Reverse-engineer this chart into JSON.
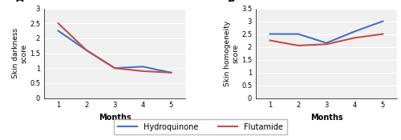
{
  "months": [
    1,
    2,
    3,
    4,
    5
  ],
  "panel_A": {
    "label": "A",
    "ylabel": "Skin darkness\nscore",
    "xlabel": "Months",
    "hydroquinone": [
      2.25,
      1.6,
      1.0,
      1.05,
      0.85
    ],
    "flutamide": [
      2.5,
      1.6,
      1.0,
      0.9,
      0.85
    ],
    "ylim": [
      0,
      3
    ],
    "yticks": [
      0,
      0.5,
      1,
      1.5,
      2,
      2.5,
      3
    ]
  },
  "panel_B": {
    "label": "B",
    "ylabel": "Skin homogeneity\nscore",
    "xlabel": "Months",
    "hydroquinone": [
      2.5,
      2.5,
      2.15,
      2.6,
      3.0
    ],
    "flutamide": [
      2.25,
      2.05,
      2.1,
      2.35,
      2.5
    ],
    "ylim": [
      0,
      3.5
    ],
    "yticks": [
      0,
      0.5,
      1,
      1.5,
      2,
      2.5,
      3,
      3.5
    ]
  },
  "hydroquinone_color": "#4472C4",
  "flutamide_color": "#C0504D",
  "legend_hydroquinone": "Hydroquinone",
  "legend_flutamide": "Flutamide",
  "background_color": "#f0f0f0",
  "line_width": 1.5
}
